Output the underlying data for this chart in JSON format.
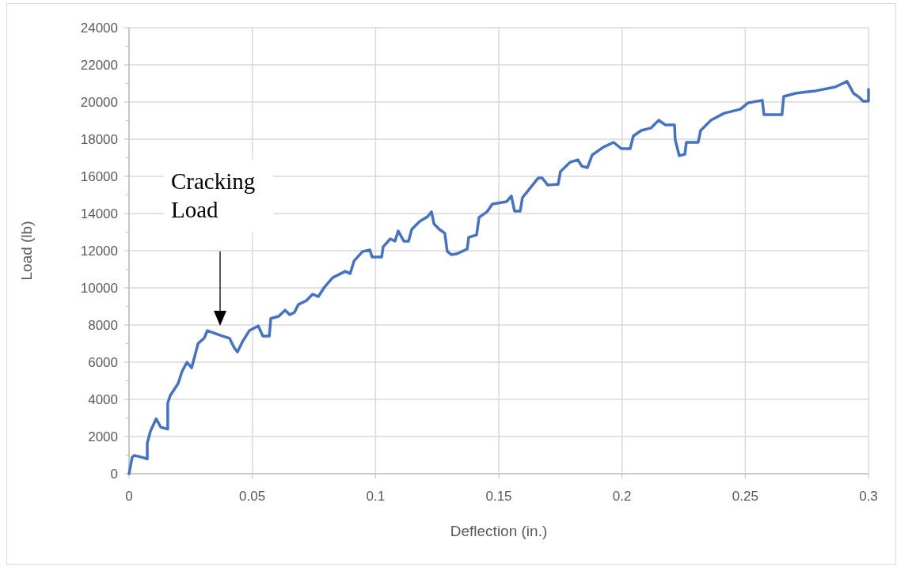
{
  "chart_data": {
    "type": "line",
    "xlabel": "Deflection (in.)",
    "ylabel": "Load (lb)",
    "xlim": [
      0,
      0.3
    ],
    "xticks": [
      0,
      0.05,
      0.1,
      0.15,
      0.2,
      0.25,
      0.3
    ],
    "ylim": [
      0,
      24000
    ],
    "yticks": [
      0,
      2000,
      4000,
      6000,
      8000,
      10000,
      12000,
      14000,
      16000,
      18000,
      20000,
      22000,
      24000
    ],
    "grid": true,
    "marker": "none",
    "line_style": "solid",
    "annotations": [
      "Cracking Load"
    ],
    "series": [
      {
        "color": "#4472c4",
        "x": [
          0,
          0.0013,
          0.0022,
          0.0048,
          0.0074,
          0.0074,
          0.0087,
          0.011,
          0.0129,
          0.0157,
          0.0157,
          0.0167,
          0.0199,
          0.0215,
          0.0235,
          0.0254,
          0.028,
          0.0305,
          0.0318,
          0.0369,
          0.0408,
          0.0427,
          0.044,
          0.046,
          0.0488,
          0.0524,
          0.0543,
          0.0569,
          0.0575,
          0.0607,
          0.0633,
          0.0652,
          0.0671,
          0.0687,
          0.072,
          0.0745,
          0.0768,
          0.0793,
          0.0826,
          0.0877,
          0.0897,
          0.0913,
          0.0948,
          0.0977,
          0.0986,
          0.1025,
          0.1031,
          0.106,
          0.1079,
          0.1092,
          0.1115,
          0.1134,
          0.1147,
          0.1179,
          0.1211,
          0.1227,
          0.1237,
          0.1259,
          0.1281,
          0.1291,
          0.1307,
          0.133,
          0.1372,
          0.1378,
          0.141,
          0.142,
          0.1452,
          0.1474,
          0.1532,
          0.1551,
          0.1564,
          0.1587,
          0.1596,
          0.1622,
          0.166,
          0.1676,
          0.1699,
          0.1741,
          0.175,
          0.1789,
          0.1821,
          0.1837,
          0.186,
          0.1879,
          0.1924,
          0.1966,
          0.1997,
          0.2033,
          0.2046,
          0.2078,
          0.2117,
          0.2149,
          0.2175,
          0.2213,
          0.2216,
          0.2232,
          0.2255,
          0.2261,
          0.2309,
          0.2319,
          0.2361,
          0.2415,
          0.248,
          0.2512,
          0.2569,
          0.2576,
          0.2649,
          0.2656,
          0.2704,
          0.2785,
          0.2865,
          0.2913,
          0.2939,
          0.2962,
          0.2978,
          0.3,
          0.3
        ],
        "values": [
          0,
          900,
          980,
          900,
          800,
          1650,
          2300,
          2950,
          2500,
          2400,
          3800,
          4200,
          4850,
          5500,
          6000,
          5700,
          7000,
          7300,
          7700,
          7450,
          7280,
          6770,
          6550,
          7100,
          7700,
          7950,
          7400,
          7400,
          8350,
          8470,
          8800,
          8550,
          8680,
          9100,
          9320,
          9660,
          9530,
          10040,
          10550,
          10890,
          10770,
          11450,
          11960,
          12040,
          11660,
          11660,
          12210,
          12640,
          12510,
          13060,
          12510,
          12510,
          13150,
          13570,
          13830,
          14090,
          13450,
          13150,
          12940,
          11960,
          11790,
          11830,
          12090,
          12720,
          12850,
          13790,
          14090,
          14510,
          14640,
          14940,
          14130,
          14130,
          14850,
          15280,
          15910,
          15910,
          15530,
          15570,
          16250,
          16760,
          16890,
          16550,
          16470,
          17150,
          17570,
          17830,
          17490,
          17490,
          18170,
          18470,
          18600,
          19020,
          18770,
          18770,
          17960,
          17110,
          17190,
          17830,
          17830,
          18470,
          19020,
          19400,
          19610,
          19960,
          20090,
          19320,
          19320,
          20300,
          20470,
          20600,
          20810,
          21110,
          20470,
          20260,
          20040,
          20040,
          20680
        ]
      }
    ]
  }
}
